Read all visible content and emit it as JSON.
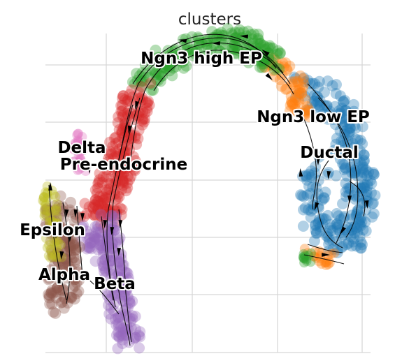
{
  "chart_data": {
    "type": "scatter",
    "title": "clusters",
    "xlabel": "",
    "ylabel": "",
    "grid": true,
    "colors": {
      "Ductal": "#1f77b4",
      "Ngn3 low EP": "#ff7f0e",
      "Ngn3 high EP": "#2ca02c",
      "Pre-endocrine": "#d62728",
      "Beta": "#9467bd",
      "Alpha": "#8c564b",
      "Delta": "#e377c2",
      "Epsilon": "#bcbd22"
    },
    "labels": {
      "ngn3_high": "Ngn3 high EP",
      "ngn3_low": "Ngn3 low EP",
      "ductal": "Ductal",
      "delta": "Delta",
      "pre_endocrine": "Pre-endocrine",
      "epsilon": "Epsilon",
      "alpha": "Alpha",
      "beta": "Beta"
    }
  }
}
